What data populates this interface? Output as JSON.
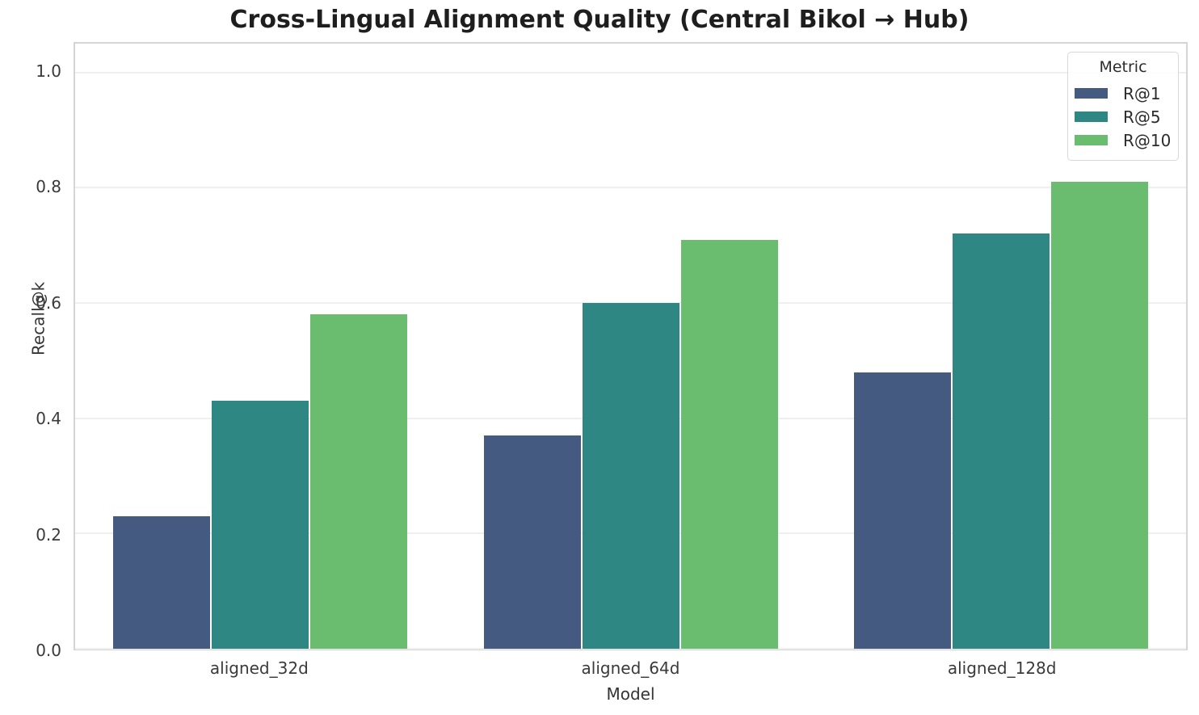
{
  "chart_data": {
    "type": "bar",
    "title": "Cross-Lingual Alignment Quality (Central Bikol → Hub)",
    "xlabel": "Model",
    "ylabel": "Recall@k",
    "categories": [
      "aligned_32d",
      "aligned_64d",
      "aligned_128d"
    ],
    "series": [
      {
        "name": "R@1",
        "color": "#455a81",
        "values": [
          0.23,
          0.37,
          0.48
        ]
      },
      {
        "name": "R@5",
        "color": "#2e8783",
        "values": [
          0.43,
          0.6,
          0.72
        ]
      },
      {
        "name": "R@10",
        "color": "#6abc6e",
        "values": [
          0.58,
          0.71,
          0.81
        ]
      }
    ],
    "ylim": [
      0,
      1.05
    ],
    "yticks": [
      0.0,
      0.2,
      0.4,
      0.6,
      0.8,
      1.0
    ],
    "grid": "horizontal",
    "legend": {
      "title": "Metric",
      "position": "upper right"
    },
    "colors": {
      "background": "#ffffff",
      "gridline": "#efefef",
      "spine": "#d5d5d5",
      "text": "#3a3a3a",
      "title_text": "#1e1e1e"
    }
  }
}
